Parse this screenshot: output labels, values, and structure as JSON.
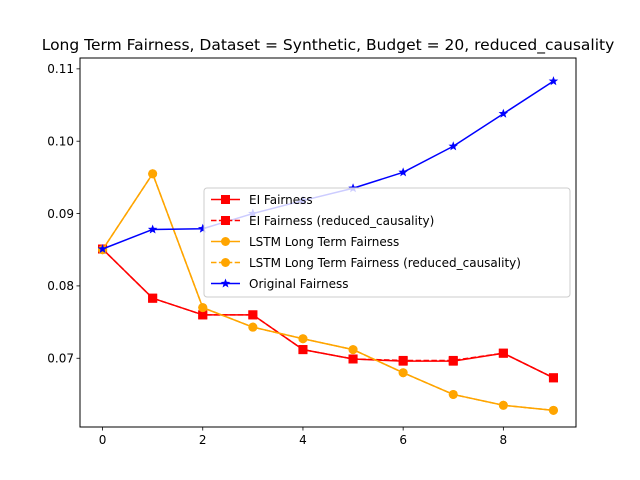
{
  "chart_data": {
    "type": "line",
    "title": "Long Term Fairness, Dataset = Synthetic, Budget = 20, reduced_causality",
    "xlabel": "",
    "ylabel": "",
    "x": [
      0,
      1,
      2,
      3,
      4,
      5,
      6,
      7,
      8,
      9
    ],
    "xlim": [
      -0.45,
      9.45
    ],
    "ylim": [
      0.0605,
      0.1115
    ],
    "xticks": [
      "0",
      "2",
      "4",
      "6",
      "8"
    ],
    "yticks": [
      "0.07",
      "0.08",
      "0.09",
      "0.10",
      "0.11"
    ],
    "grid": false,
    "legend_position": "center-right",
    "series": [
      {
        "name": "EI Fairness",
        "color": "#ff0000",
        "marker": "square",
        "linestyle": "solid",
        "values": [
          0.0851,
          0.0783,
          0.076,
          0.076,
          0.0712,
          0.0699,
          0.0696,
          0.0696,
          0.0707,
          0.0673
        ]
      },
      {
        "name": "EI Fairness (reduced_causality)",
        "color": "#ff0000",
        "marker": "square",
        "linestyle": "dashed",
        "values": [
          0.0851,
          0.0783,
          0.076,
          0.076,
          0.0712,
          0.0699,
          0.0697,
          0.0697,
          0.0707,
          0.0673
        ]
      },
      {
        "name": "LSTM Long Term Fairness",
        "color": "#ffa500",
        "marker": "circle",
        "linestyle": "solid",
        "values": [
          0.085,
          0.0955,
          0.077,
          0.0743,
          0.0727,
          0.0712,
          0.068,
          0.065,
          0.0635,
          0.0628
        ]
      },
      {
        "name": "LSTM Long Term Fairness (reduced_causality)",
        "color": "#ffa500",
        "marker": "circle",
        "linestyle": "dashed",
        "values": [
          0.085,
          0.0955,
          0.077,
          0.0743,
          0.0727,
          0.0712,
          0.068,
          0.065,
          0.0635,
          0.0628
        ]
      },
      {
        "name": "Original Fairness",
        "color": "#0000ff",
        "marker": "star",
        "linestyle": "solid",
        "values": [
          0.0851,
          0.0878,
          0.0879,
          0.09,
          0.0918,
          0.0935,
          0.0957,
          0.0993,
          0.1038,
          0.1083
        ]
      }
    ]
  }
}
